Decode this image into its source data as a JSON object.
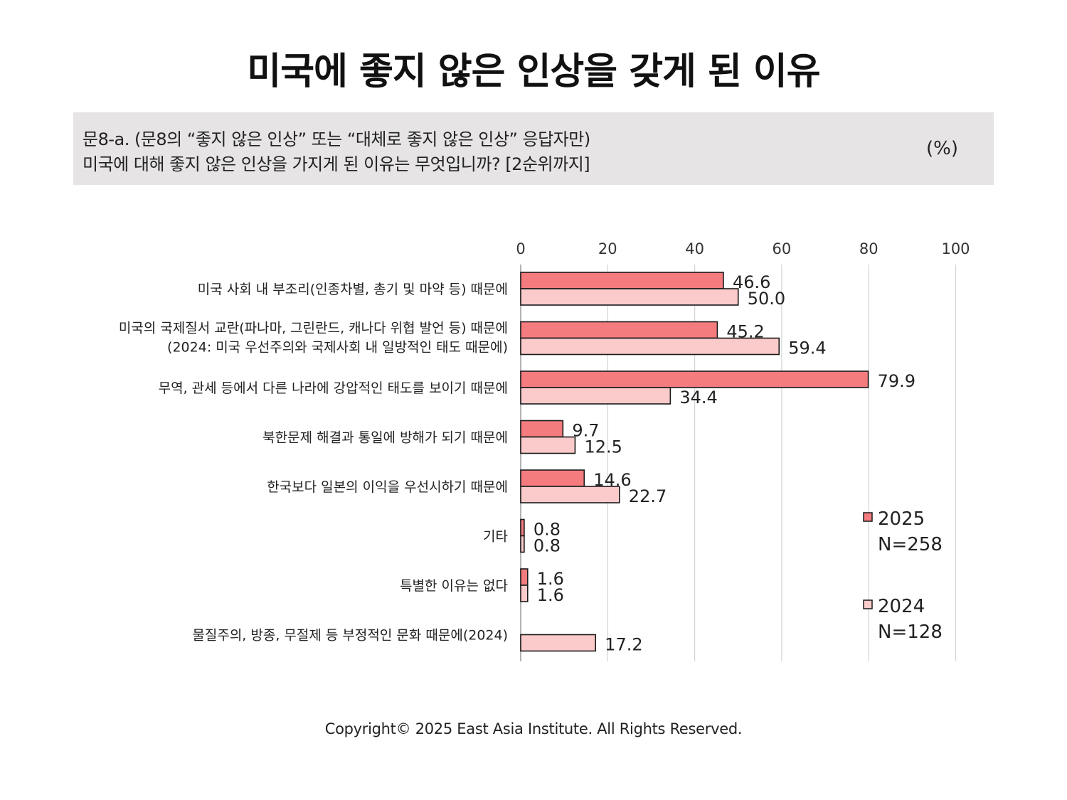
{
  "title": "미국에 좋지 않은 인상을 갖게 된 이유",
  "question": {
    "line1": "문8-a. (문8의 “좋지 않은 인상” 또는 “대체로 좋지 않은 인상” 응답자만)",
    "line2": "미국에 대해 좋지 않은 인상을 가지게 된 이유는 무엇입니까? [2순위까지]",
    "unit": "(%)"
  },
  "copyright": "Copyright© 2025 East Asia Institute. All Rights Reserved.",
  "chart_data": {
    "type": "bar",
    "orientation": "horizontal",
    "title": "",
    "xlim": [
      0,
      100
    ],
    "xticks": [
      0,
      20,
      40,
      60,
      80,
      100
    ],
    "grid": true,
    "legend_position": "right",
    "categories": [
      [
        "미국 사회 내 부조리(인종차별, 총기 및 마약 등) 때문에"
      ],
      [
        "미국의 국제질서 교란(파나마, 그린란드, 캐나다 위협 발언 등) 때문에",
        "(2024: 미국 우선주의와 국제사회 내 일방적인 태도 때문에)"
      ],
      [
        "무역, 관세 등에서 다른 나라에 강압적인 태도를 보이기 때문에"
      ],
      [
        "북한문제 해결과 통일에 방해가 되기 때문에"
      ],
      [
        "한국보다 일본의 이익을 우선시하기 때문에"
      ],
      [
        "기타"
      ],
      [
        "특별한 이유는 없다"
      ],
      [
        "물질주의, 방종, 무절제 등 부정적인 문화 때문에(2024)"
      ]
    ],
    "series": [
      {
        "name": "2025",
        "n": "N=258",
        "color": "#f47c7e",
        "values": [
          46.6,
          45.2,
          79.9,
          9.7,
          14.6,
          0.8,
          1.6,
          null
        ],
        "labels": [
          "46.6",
          "45.2",
          "79.9",
          "9.7",
          "14.6",
          "0.8",
          "1.6",
          ""
        ]
      },
      {
        "name": "2024",
        "n": "N=128",
        "color": "#fbcaca",
        "values": [
          50.0,
          59.4,
          34.4,
          12.5,
          22.7,
          0.8,
          1.6,
          17.2
        ],
        "labels": [
          "50.0",
          "59.4",
          "34.4",
          "12.5",
          "22.7",
          "0.8",
          "1.6",
          "17.2"
        ]
      }
    ]
  }
}
